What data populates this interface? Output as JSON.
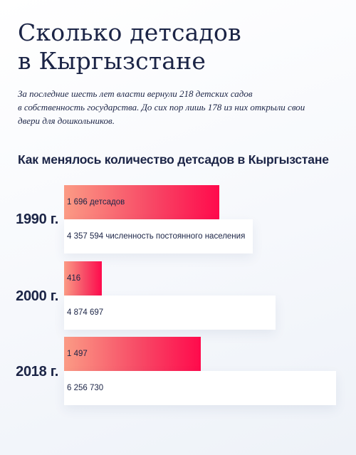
{
  "header": {
    "title_line1": "Сколько детсадов",
    "title_line2": "в Кыргызстане",
    "intro_lines": [
      "За последние шесть лет власти вернули 218 детских садов",
      "в собственность государства. До сих пор лишь 178 из них открыли свои",
      "двери для дошкольников."
    ]
  },
  "chart_data": {
    "type": "bar",
    "title": "Как менялось количество детсадов в Кыргызстане",
    "categories": [
      "1990 г.",
      "2000 г.",
      "2018 г."
    ],
    "series": [
      {
        "key": "kindergartens",
        "values": [
          1696,
          416,
          1497
        ],
        "labels": [
          "1 696 детсадов",
          "416",
          "1 497"
        ],
        "color": "#f7375e"
      },
      {
        "key": "population",
        "values": [
          4357594,
          4874697,
          6256730
        ],
        "labels": [
          "4 357 594 численность постоянного населения",
          "4 874 697",
          "6 256 730"
        ],
        "color": "#ffffff"
      }
    ]
  }
}
